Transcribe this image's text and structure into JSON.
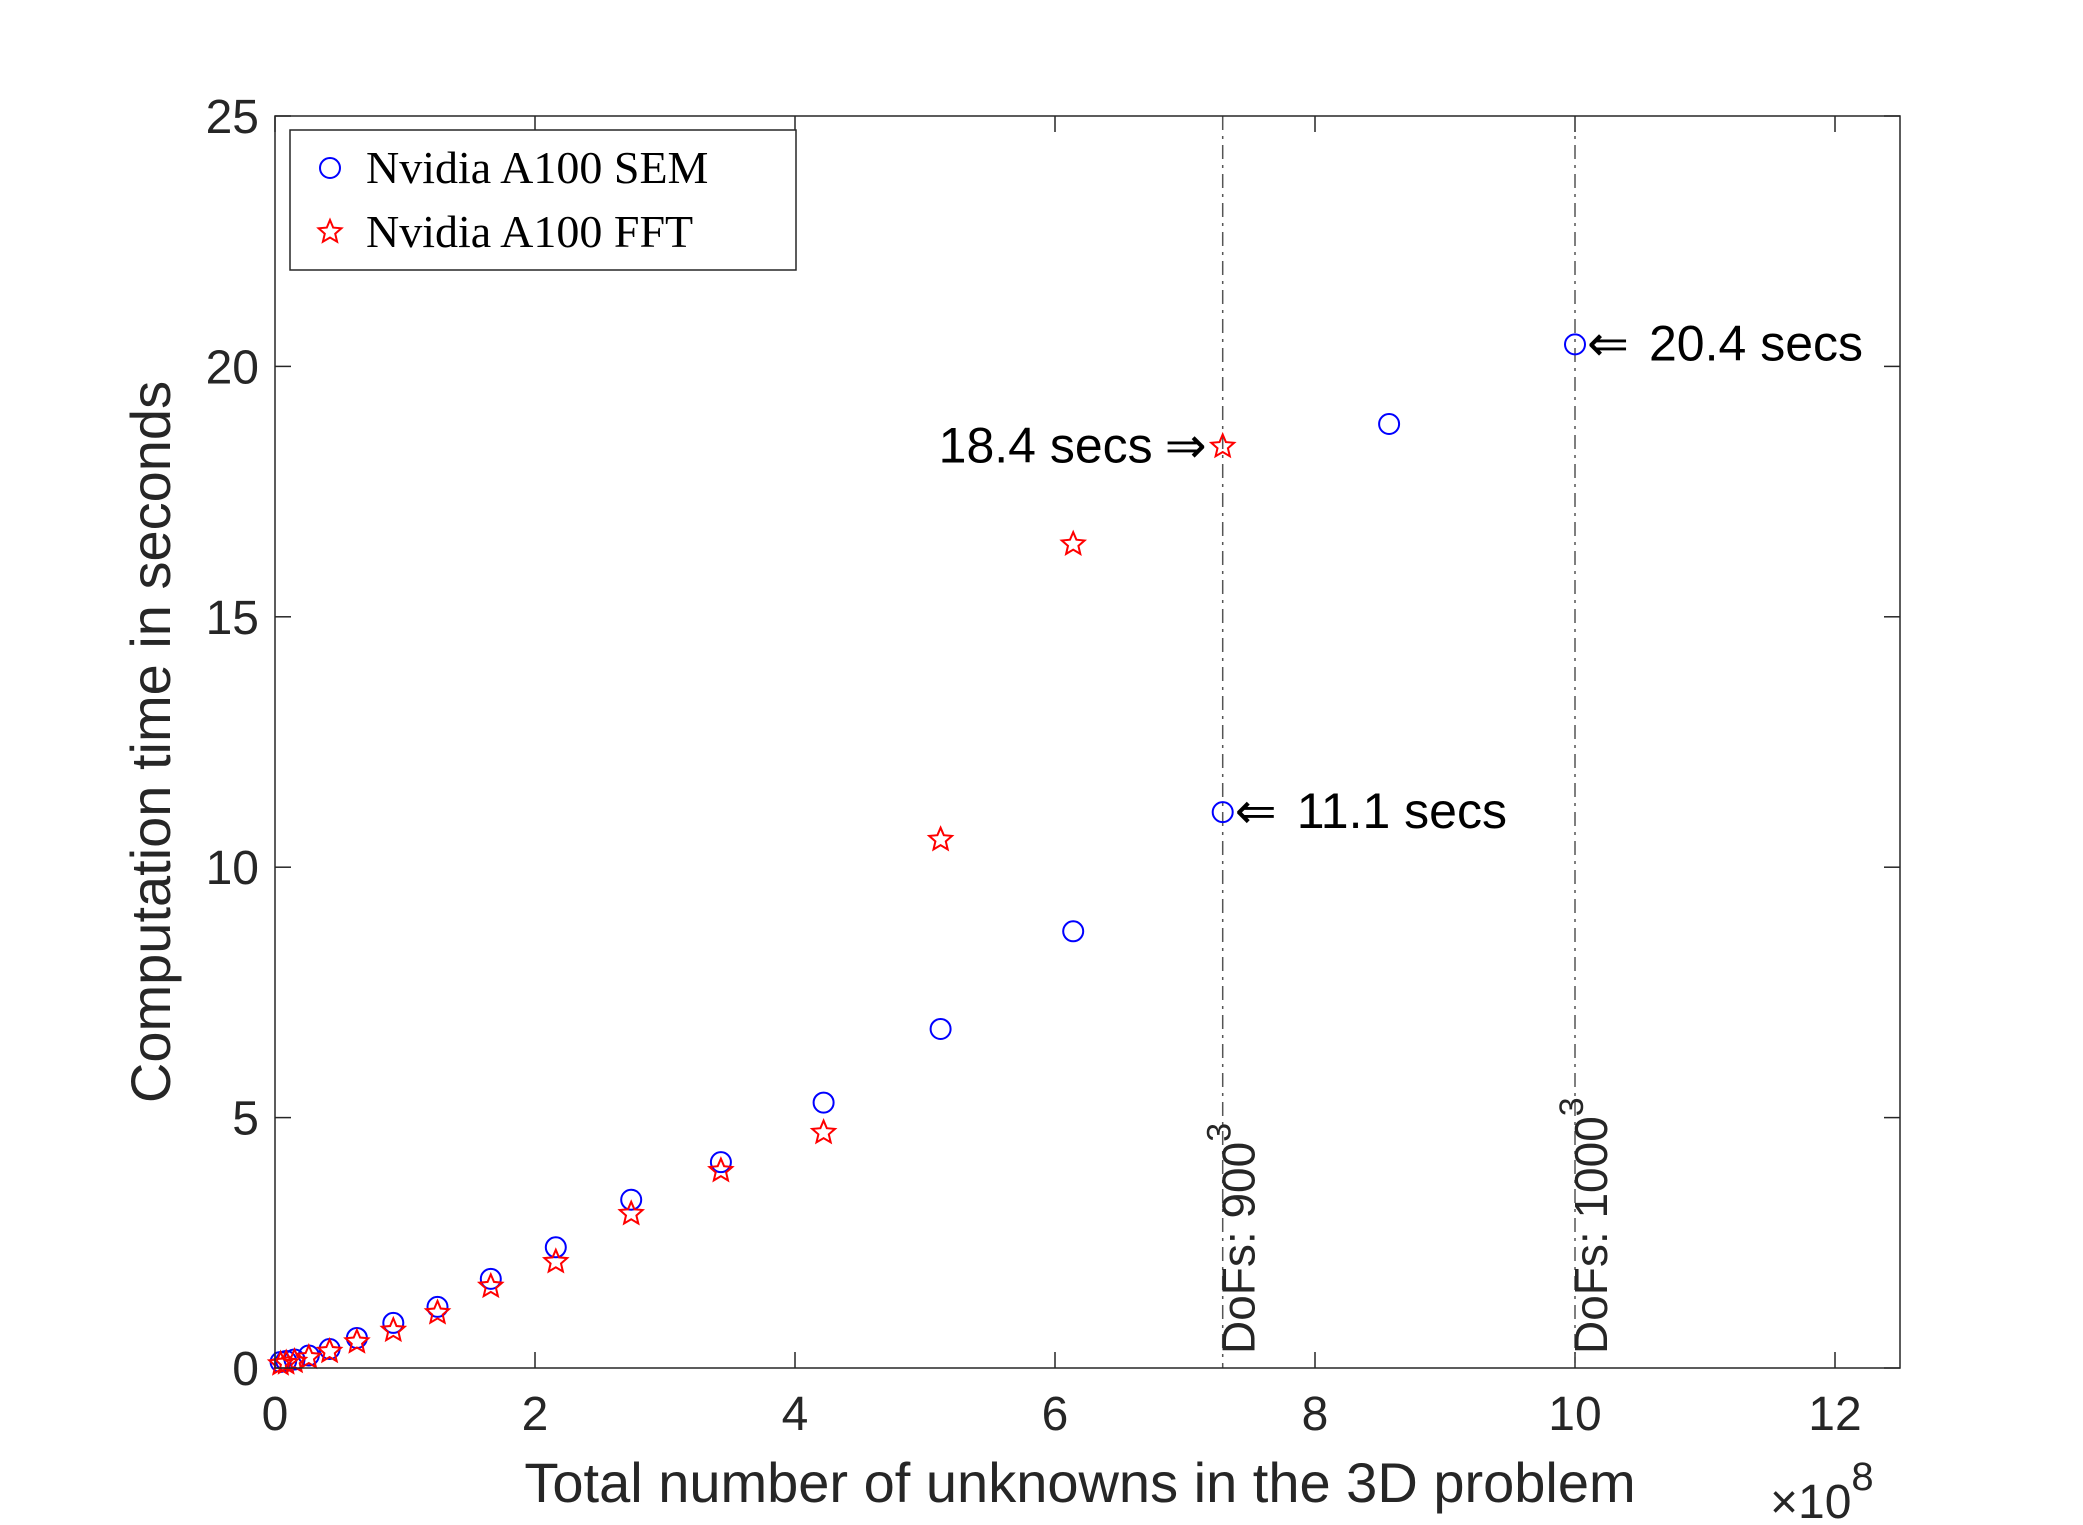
{
  "chart_data": {
    "type": "scatter",
    "xlabel": "Total number of unknowns in the 3D problem",
    "x_exponent": {
      "base": "×10",
      "power": "8"
    },
    "ylabel": "Computation time in seconds",
    "xlim": [
      0,
      12.5
    ],
    "ylim": [
      0,
      25
    ],
    "xticks": [
      0,
      2,
      4,
      6,
      8,
      10,
      12
    ],
    "yticks": [
      0,
      5,
      10,
      15,
      20,
      25
    ],
    "legend_position": "top-left",
    "series": [
      {
        "name": "Nvidia A100 SEM",
        "marker": "circle",
        "color": "#0000ff",
        "points": [
          [
            0.043,
            0.12
          ],
          [
            0.086,
            0.14
          ],
          [
            0.15,
            0.17
          ],
          [
            0.26,
            0.25
          ],
          [
            0.42,
            0.38
          ],
          [
            0.63,
            0.6
          ],
          [
            0.91,
            0.9
          ],
          [
            1.25,
            1.22
          ],
          [
            1.66,
            1.78
          ],
          [
            2.16,
            2.41
          ],
          [
            2.74,
            3.36
          ],
          [
            3.43,
            4.11
          ],
          [
            4.22,
            5.3
          ],
          [
            5.12,
            6.77
          ],
          [
            6.14,
            8.72
          ],
          [
            7.29,
            11.1
          ],
          [
            8.57,
            18.85
          ],
          [
            10.0,
            20.44
          ]
        ]
      },
      {
        "name": "Nvidia A100 FFT",
        "marker": "star",
        "color": "#ff0000",
        "points": [
          [
            0.043,
            0.08
          ],
          [
            0.086,
            0.1
          ],
          [
            0.15,
            0.13
          ],
          [
            0.26,
            0.21
          ],
          [
            0.42,
            0.33
          ],
          [
            0.63,
            0.52
          ],
          [
            0.91,
            0.75
          ],
          [
            1.25,
            1.1
          ],
          [
            1.66,
            1.63
          ],
          [
            2.16,
            2.12
          ],
          [
            2.74,
            3.08
          ],
          [
            3.43,
            3.94
          ],
          [
            4.22,
            4.7
          ],
          [
            5.12,
            10.55
          ],
          [
            6.14,
            16.45
          ],
          [
            7.29,
            18.4
          ]
        ]
      }
    ],
    "reference_lines": [
      {
        "x": 7.29,
        "label_text": "DoFs: 900",
        "label_sup": "3"
      },
      {
        "x": 10.0,
        "label_text": "DoFs: 1000",
        "label_sup": "3"
      }
    ],
    "annotations": [
      {
        "text": "18.4 secs",
        "arrow": "⇒",
        "x": 7.29,
        "y": 18.4,
        "side": "left"
      },
      {
        "text": "11.1 secs",
        "arrow": "⇐",
        "x": 7.29,
        "y": 11.1,
        "side": "right"
      },
      {
        "text": "20.4 secs",
        "arrow": "⇐",
        "x": 10.0,
        "y": 20.44,
        "side": "right"
      }
    ]
  }
}
